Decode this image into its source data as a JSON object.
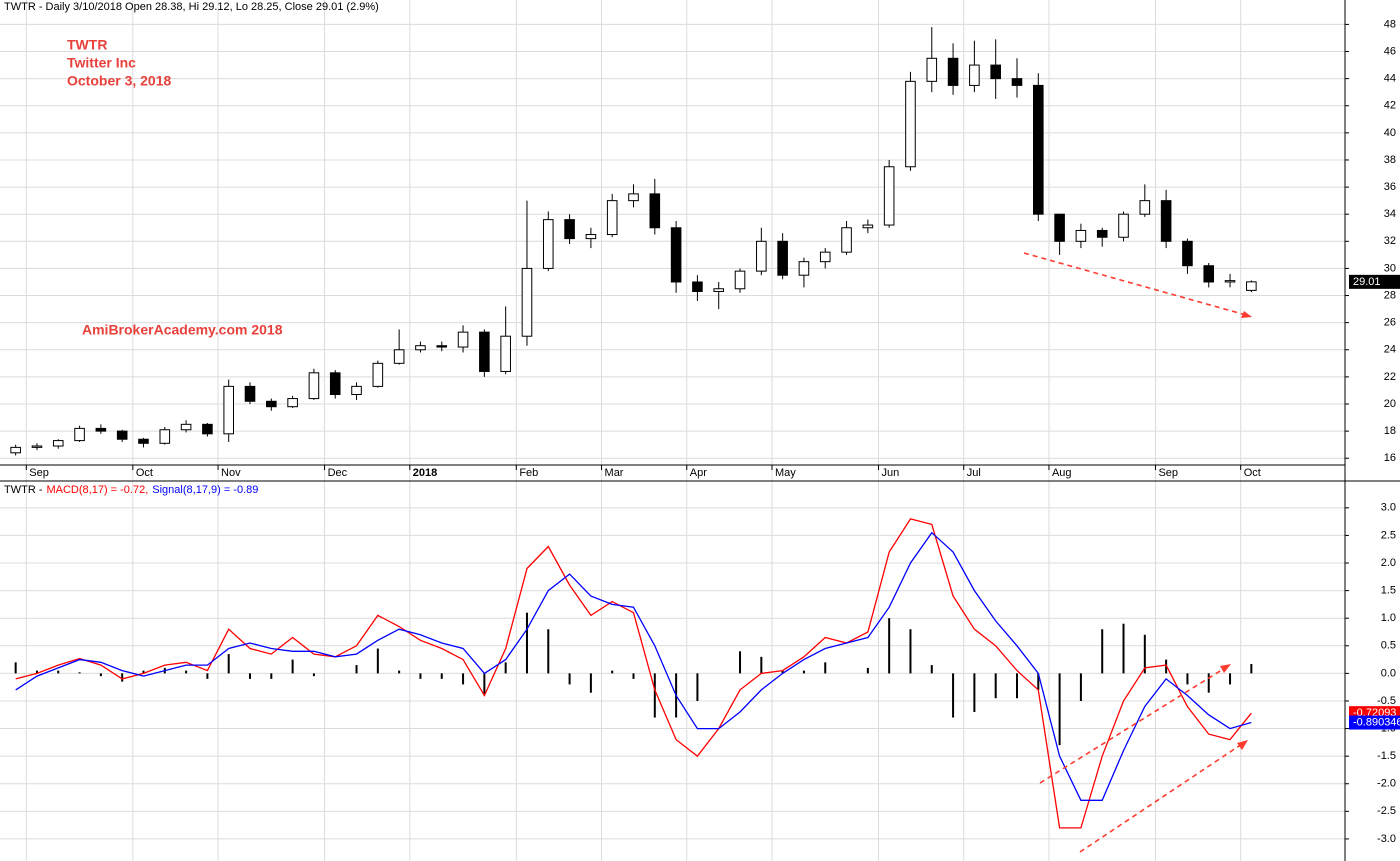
{
  "chart_data": [
    {
      "type": "candlestick",
      "title": "TWTR - Daily 3/10/2018 Open 28.38, Hi 29.12, Lo 28.25, Close 29.01 (2.9%)",
      "annotations": [
        "TWTR",
        "Twitter Inc",
        "October 3, 2018"
      ],
      "watermark": "AmiBrokerAcademy.com  2018",
      "categories": [
        null,
        "Sep",
        null,
        null,
        null,
        null,
        "Oct",
        null,
        null,
        null,
        "Nov",
        null,
        null,
        null,
        null,
        "Dec",
        null,
        null,
        null,
        "2018",
        null,
        null,
        null,
        null,
        "Feb",
        null,
        null,
        null,
        "Mar",
        null,
        null,
        null,
        "Apr",
        null,
        null,
        null,
        "May",
        null,
        null,
        null,
        null,
        "Jun",
        null,
        null,
        null,
        "Jul",
        null,
        null,
        null,
        "Aug",
        null,
        null,
        null,
        null,
        "Sep",
        null,
        null,
        null,
        "Oct"
      ],
      "open": [
        16.4,
        16.8,
        16.9,
        17.3,
        18.2,
        18.0,
        17.4,
        17.1,
        18.1,
        18.5,
        17.8,
        21.3,
        20.2,
        19.8,
        20.4,
        22.3,
        20.7,
        21.3,
        23.0,
        24.0,
        24.3,
        24.2,
        25.3,
        22.4,
        25.0,
        30.0,
        33.6,
        32.2,
        32.5,
        35.0,
        35.5,
        33.0,
        29.0,
        28.3,
        28.5,
        29.8,
        32.0,
        29.5,
        30.5,
        31.2,
        33.0,
        33.2,
        37.5,
        43.8,
        45.5,
        43.5,
        45.0,
        44.0,
        43.5,
        34.0,
        32.0,
        32.8,
        32.3,
        34.0,
        35.0,
        32.0,
        30.2,
        29.0,
        28.38
      ],
      "high": [
        17.0,
        17.1,
        17.4,
        18.4,
        18.5,
        18.1,
        17.5,
        18.3,
        18.8,
        18.6,
        21.8,
        21.6,
        20.4,
        20.6,
        22.6,
        22.5,
        21.6,
        23.2,
        25.5,
        24.6,
        24.6,
        25.8,
        25.5,
        27.2,
        35.0,
        34.2,
        34.0,
        33.0,
        35.5,
        36.2,
        36.6,
        33.5,
        29.5,
        29.0,
        30.0,
        33.0,
        32.6,
        30.8,
        31.5,
        33.5,
        33.6,
        38.0,
        44.5,
        47.8,
        46.6,
        46.8,
        46.9,
        45.5,
        44.4,
        34.0,
        33.3,
        33.0,
        34.2,
        36.2,
        35.8,
        32.2,
        30.4,
        29.6,
        29.12
      ],
      "low": [
        16.2,
        16.6,
        16.7,
        17.2,
        17.8,
        17.2,
        16.8,
        17.0,
        17.9,
        17.6,
        17.2,
        20.0,
        19.5,
        19.7,
        20.3,
        20.4,
        20.3,
        21.2,
        22.9,
        23.8,
        23.9,
        23.8,
        22.0,
        22.2,
        24.3,
        29.8,
        31.8,
        31.5,
        32.3,
        34.5,
        32.5,
        28.2,
        27.6,
        27.0,
        28.2,
        29.5,
        29.2,
        28.6,
        30.0,
        31.0,
        32.6,
        33.0,
        37.2,
        43.0,
        42.8,
        43.0,
        42.5,
        42.6,
        33.5,
        31.0,
        31.5,
        31.6,
        32.0,
        33.8,
        31.5,
        29.6,
        28.6,
        28.6,
        28.25
      ],
      "close": [
        16.8,
        16.9,
        17.3,
        18.2,
        18.0,
        17.4,
        17.1,
        18.1,
        18.5,
        17.8,
        21.3,
        20.2,
        19.8,
        20.4,
        22.3,
        20.7,
        21.3,
        23.0,
        24.0,
        24.3,
        24.2,
        25.3,
        22.4,
        25.0,
        30.0,
        33.6,
        32.2,
        32.5,
        35.0,
        35.5,
        33.0,
        29.0,
        28.3,
        28.5,
        29.8,
        32.0,
        29.5,
        30.5,
        31.2,
        33.0,
        33.2,
        37.5,
        43.8,
        45.5,
        43.5,
        45.0,
        44.0,
        43.5,
        34.0,
        32.0,
        32.8,
        32.3,
        34.0,
        35.0,
        32.0,
        30.2,
        29.0,
        29.1,
        29.01
      ],
      "last_label": "29.01",
      "ylim": [
        15.5,
        49.8
      ],
      "yticks": [
        16,
        18,
        20,
        22,
        24,
        26,
        28,
        30,
        32,
        34,
        36,
        38,
        40,
        42,
        44,
        46,
        48
      ],
      "grid": true,
      "color": "#000000"
    },
    {
      "type": "line",
      "title_parts": [
        {
          "text": "TWTR -",
          "color": "#000000"
        },
        {
          "text": "MACD(8,17) = -0.72,",
          "color": "#ff0000"
        },
        {
          "text": "Signal(8,17,9) = -0.89",
          "color": "#0000ff"
        }
      ],
      "series": [
        {
          "name": "MACD(8,17)",
          "color": "#ff0000",
          "last_label": "-0.72093",
          "values": [
            -0.1,
            0.0,
            0.15,
            0.27,
            0.15,
            -0.1,
            0.0,
            0.15,
            0.2,
            0.05,
            0.8,
            0.45,
            0.35,
            0.65,
            0.35,
            0.3,
            0.5,
            1.05,
            0.85,
            0.6,
            0.45,
            0.25,
            -0.4,
            0.45,
            1.9,
            2.3,
            1.6,
            1.05,
            1.3,
            1.1,
            -0.3,
            -1.2,
            -1.5,
            -1.0,
            -0.3,
            0.0,
            0.05,
            0.3,
            0.65,
            0.55,
            0.75,
            2.2,
            2.8,
            2.7,
            1.4,
            0.8,
            0.5,
            0.05,
            -0.3,
            -2.8,
            -2.8,
            -1.5,
            -0.5,
            0.1,
            0.15,
            -0.6,
            -1.1,
            -1.2,
            -0.72093
          ]
        },
        {
          "name": "Signal(8,17,9)",
          "color": "#0000ff",
          "last_label": "-0.890346",
          "values": [
            -0.3,
            -0.05,
            0.1,
            0.25,
            0.2,
            0.05,
            -0.05,
            0.05,
            0.15,
            0.15,
            0.45,
            0.55,
            0.45,
            0.4,
            0.4,
            0.3,
            0.35,
            0.6,
            0.8,
            0.7,
            0.55,
            0.45,
            0.0,
            0.25,
            0.8,
            1.5,
            1.8,
            1.4,
            1.25,
            1.2,
            0.5,
            -0.4,
            -1.0,
            -1.0,
            -0.7,
            -0.3,
            0.0,
            0.25,
            0.45,
            0.55,
            0.65,
            1.2,
            2.0,
            2.55,
            2.2,
            1.5,
            0.95,
            0.5,
            0.0,
            -1.5,
            -2.3,
            -2.3,
            -1.4,
            -0.6,
            -0.1,
            -0.4,
            -0.75,
            -1.0,
            -0.890346
          ]
        }
      ],
      "histogram": {
        "color": "#000000",
        "values": [
          0.2,
          0.05,
          0.05,
          0.02,
          -0.05,
          -0.15,
          0.05,
          0.1,
          0.05,
          -0.1,
          0.35,
          -0.1,
          -0.1,
          0.25,
          -0.05,
          0.0,
          0.15,
          0.45,
          0.05,
          -0.1,
          -0.1,
          -0.2,
          -0.4,
          0.2,
          1.1,
          0.8,
          -0.2,
          -0.35,
          0.05,
          -0.1,
          -0.8,
          -0.8,
          -0.5,
          0.0,
          0.4,
          0.3,
          0.05,
          0.05,
          0.2,
          0.0,
          0.1,
          1.0,
          0.8,
          0.15,
          -0.8,
          -0.7,
          -0.45,
          -0.45,
          -0.3,
          -1.3,
          -0.5,
          0.8,
          0.9,
          0.7,
          0.25,
          -0.2,
          -0.35,
          -0.2,
          0.17
        ]
      },
      "ylim": [
        -3.4,
        3.45
      ],
      "yticks": [
        {
          "value": 3,
          "label": "3.0"
        },
        2.5,
        {
          "value": 2,
          "label": "2.0"
        },
        1.5,
        {
          "value": 1,
          "label": "1.0"
        },
        0.5,
        {
          "value": 0,
          "label": "0.0"
        },
        -0.5,
        {
          "value": -1,
          "label": "-1.0"
        },
        -1.5,
        {
          "value": -2,
          "label": "-2.0"
        },
        -2.5,
        {
          "value": -3,
          "label": "-3.0"
        }
      ],
      "grid": true
    }
  ]
}
